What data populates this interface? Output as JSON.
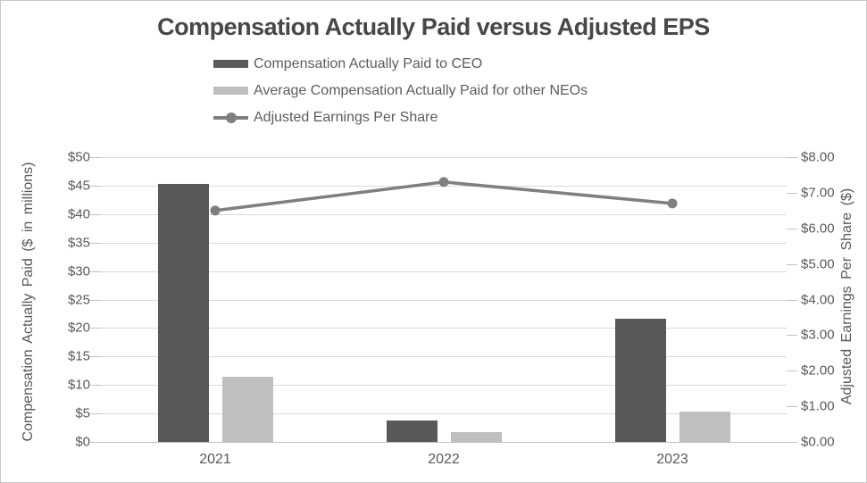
{
  "chart_data": {
    "type": "combo",
    "title": "Compensation Actually Paid versus Adjusted EPS",
    "categories": [
      "2021",
      "2022",
      "2023"
    ],
    "series": [
      {
        "name": "Compensation Actually Paid to CEO",
        "type": "bar",
        "axis": "left",
        "color": "#595959",
        "values": [
          45.3,
          3.8,
          21.7
        ]
      },
      {
        "name": "Average Compensation Actually Paid for other NEOs",
        "type": "bar",
        "axis": "left",
        "color": "#bfbfbf",
        "values": [
          11.4,
          1.7,
          5.3
        ]
      },
      {
        "name": "Adjusted Earnings Per Share",
        "type": "line",
        "axis": "right",
        "color": "#7f7f7f",
        "values": [
          6.5,
          7.3,
          6.7
        ]
      }
    ],
    "left_axis": {
      "title": "Compensation Actually Paid ($ in millions)",
      "min": 0,
      "max": 50,
      "step": 5,
      "ticks": [
        "$0",
        "$5",
        "$10",
        "$15",
        "$20",
        "$25",
        "$30",
        "$35",
        "$40",
        "$45",
        "$50"
      ]
    },
    "right_axis": {
      "title": "Adjusted Earnings Per Share ($)",
      "min": 0,
      "max": 8,
      "step": 1,
      "ticks": [
        "$0.00",
        "$1.00",
        "$2.00",
        "$3.00",
        "$4.00",
        "$5.00",
        "$6.00",
        "$7.00",
        "$8.00"
      ]
    },
    "grid": true,
    "legend_position": "top",
    "colors": {
      "grid": "#d9d9d9",
      "axis_line": "#c2c2c2",
      "text": "#595959",
      "title": "#474747"
    }
  }
}
